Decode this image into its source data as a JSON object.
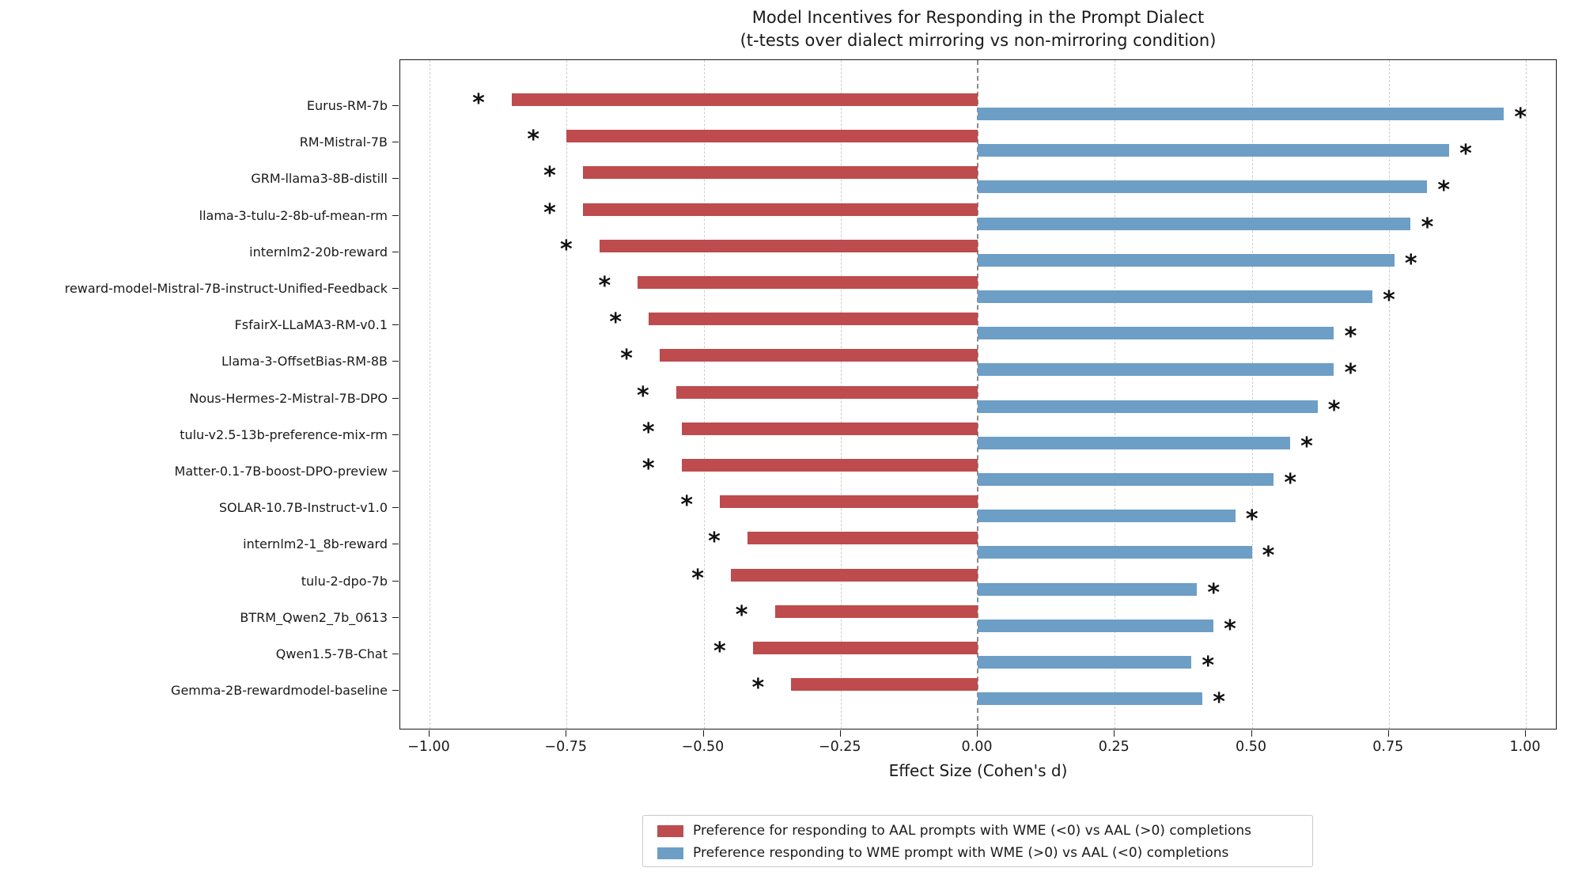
{
  "chart_data": {
    "type": "bar",
    "orientation": "horizontal-diverging",
    "title": "Model Incentives for Responding in the Prompt Dialect",
    "subtitle": "(t-tests over dialect mirroring vs non-mirroring condition)",
    "xlabel": "Effect Size (Cohen's d)",
    "xlim": [
      -1.05,
      1.06
    ],
    "xticks": [
      -1.0,
      -0.75,
      -0.5,
      -0.25,
      0.0,
      0.25,
      0.5,
      0.75,
      1.0
    ],
    "xtick_labels": [
      "−1.00",
      "−0.75",
      "−0.50",
      "−0.25",
      "0.00",
      "0.25",
      "0.50",
      "0.75",
      "1.00"
    ],
    "grid": "dashed-vertical",
    "zero_line_dashed": true,
    "legend_position": "bottom-center",
    "significance_marker": "*",
    "categories": [
      "Eurus-RM-7b",
      "RM-Mistral-7B",
      "GRM-llama3-8B-distill",
      "llama-3-tulu-2-8b-uf-mean-rm",
      "internlm2-20b-reward",
      "reward-model-Mistral-7B-instruct-Unified-Feedback",
      "FsfairX-LLaMA3-RM-v0.1",
      "Llama-3-OffsetBias-RM-8B",
      "Nous-Hermes-2-Mistral-7B-DPO",
      "tulu-v2.5-13b-preference-mix-rm",
      "Matter-0.1-7B-boost-DPO-preview",
      "SOLAR-10.7B-Instruct-v1.0",
      "internlm2-1_8b-reward",
      "tulu-2-dpo-7b",
      "BTRM_Qwen2_7b_0613",
      "Qwen1.5-7B-Chat",
      "Gemma-2B-rewardmodel-baseline"
    ],
    "series": [
      {
        "name": "Preference for responding to AAL prompts with WME (<0) vs AAL (>0) completions",
        "color": "#be4b4d",
        "values": [
          -0.85,
          -0.75,
          -0.72,
          -0.72,
          -0.69,
          -0.62,
          -0.6,
          -0.58,
          -0.55,
          -0.54,
          -0.54,
          -0.47,
          -0.42,
          -0.45,
          -0.37,
          -0.41,
          -0.34
        ],
        "significant": [
          true,
          true,
          true,
          true,
          true,
          true,
          true,
          true,
          true,
          true,
          true,
          true,
          true,
          true,
          true,
          true,
          true
        ]
      },
      {
        "name": "Preference responding to WME prompt with WME (>0) vs AAL (<0) completions",
        "color": "#6d9ec6",
        "values": [
          0.96,
          0.86,
          0.82,
          0.79,
          0.76,
          0.72,
          0.65,
          0.65,
          0.62,
          0.57,
          0.54,
          0.47,
          0.5,
          0.4,
          0.43,
          0.39,
          0.41
        ],
        "significant": [
          true,
          true,
          true,
          true,
          true,
          true,
          true,
          true,
          true,
          true,
          true,
          true,
          true,
          true,
          true,
          true,
          true
        ]
      }
    ]
  }
}
